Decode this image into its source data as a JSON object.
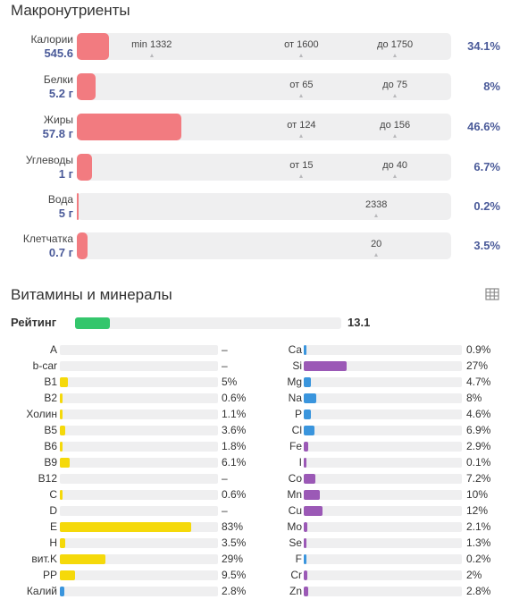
{
  "macros": {
    "title": "Макронутриенты",
    "rows": [
      {
        "name": "Калории",
        "value": "545.6",
        "percent": "34.1%",
        "fill_fraction": 0.085,
        "markers": [
          {
            "label": "min 1332",
            "pos": 0.2
          },
          {
            "label": "от 1600",
            "pos": 0.6
          },
          {
            "label": "до 1750",
            "pos": 0.85
          }
        ]
      },
      {
        "name": "Белки",
        "value": "5.2 г",
        "percent": "8%",
        "fill_fraction": 0.05,
        "markers": [
          {
            "label": "от 65",
            "pos": 0.6
          },
          {
            "label": "до 75",
            "pos": 0.85
          }
        ]
      },
      {
        "name": "Жиры",
        "value": "57.8 г",
        "percent": "46.6%",
        "fill_fraction": 0.28,
        "markers": [
          {
            "label": "от 124",
            "pos": 0.6
          },
          {
            "label": "до 156",
            "pos": 0.85
          }
        ]
      },
      {
        "name": "Углеводы",
        "value": "1 г",
        "percent": "6.7%",
        "fill_fraction": 0.04,
        "markers": [
          {
            "label": "от 15",
            "pos": 0.6
          },
          {
            "label": "до 40",
            "pos": 0.85
          }
        ]
      },
      {
        "name": "Вода",
        "value": "5 г",
        "percent": "0.2%",
        "fill_fraction": 0.004,
        "markers": [
          {
            "label": "2338",
            "pos": 0.8
          }
        ]
      },
      {
        "name": "Клетчатка",
        "value": "0.7 г",
        "percent": "3.5%",
        "fill_fraction": 0.028,
        "markers": [
          {
            "label": "20",
            "pos": 0.8
          }
        ]
      }
    ]
  },
  "vitamins": {
    "title": "Витамины и минералы",
    "rating_label": "Рейтинг",
    "rating_value": "13.1",
    "rating_fill": 0.131,
    "colors": {
      "vitamin": "#f5d90a",
      "blue": "#3a95dd",
      "purple": "#9b59b6",
      "rating": "#34c66c",
      "macro": "#f27b80"
    },
    "left": [
      {
        "name": "A",
        "value": "–",
        "fill": 0,
        "color": "vitamin"
      },
      {
        "name": "b-car",
        "value": "–",
        "fill": 0,
        "color": "vitamin"
      },
      {
        "name": "B1",
        "value": "5%",
        "fill": 0.05,
        "color": "vitamin"
      },
      {
        "name": "B2",
        "value": "0.6%",
        "fill": 0.006,
        "color": "vitamin"
      },
      {
        "name": "Холин",
        "value": "1.1%",
        "fill": 0.011,
        "color": "vitamin"
      },
      {
        "name": "B5",
        "value": "3.6%",
        "fill": 0.036,
        "color": "vitamin"
      },
      {
        "name": "B6",
        "value": "1.8%",
        "fill": 0.018,
        "color": "vitamin"
      },
      {
        "name": "B9",
        "value": "6.1%",
        "fill": 0.061,
        "color": "vitamin"
      },
      {
        "name": "B12",
        "value": "–",
        "fill": 0,
        "color": "vitamin"
      },
      {
        "name": "C",
        "value": "0.6%",
        "fill": 0.006,
        "color": "vitamin"
      },
      {
        "name": "D",
        "value": "–",
        "fill": 0,
        "color": "vitamin"
      },
      {
        "name": "E",
        "value": "83%",
        "fill": 0.83,
        "color": "vitamin"
      },
      {
        "name": "H",
        "value": "3.5%",
        "fill": 0.035,
        "color": "vitamin"
      },
      {
        "name": "вит.K",
        "value": "29%",
        "fill": 0.29,
        "color": "vitamin"
      },
      {
        "name": "PP",
        "value": "9.5%",
        "fill": 0.095,
        "color": "vitamin"
      },
      {
        "name": "Калий",
        "value": "2.8%",
        "fill": 0.028,
        "color": "blue"
      }
    ],
    "right": [
      {
        "name": "Ca",
        "value": "0.9%",
        "fill": 0.009,
        "color": "blue"
      },
      {
        "name": "Si",
        "value": "27%",
        "fill": 0.27,
        "color": "purple"
      },
      {
        "name": "Mg",
        "value": "4.7%",
        "fill": 0.047,
        "color": "blue"
      },
      {
        "name": "Na",
        "value": "8%",
        "fill": 0.08,
        "color": "blue"
      },
      {
        "name": "P",
        "value": "4.6%",
        "fill": 0.046,
        "color": "blue"
      },
      {
        "name": "Cl",
        "value": "6.9%",
        "fill": 0.069,
        "color": "blue"
      },
      {
        "name": "Fe",
        "value": "2.9%",
        "fill": 0.029,
        "color": "purple"
      },
      {
        "name": "I",
        "value": "0.1%",
        "fill": 0.001,
        "color": "purple"
      },
      {
        "name": "Co",
        "value": "7.2%",
        "fill": 0.072,
        "color": "purple"
      },
      {
        "name": "Mn",
        "value": "10%",
        "fill": 0.1,
        "color": "purple"
      },
      {
        "name": "Cu",
        "value": "12%",
        "fill": 0.12,
        "color": "purple"
      },
      {
        "name": "Mo",
        "value": "2.1%",
        "fill": 0.021,
        "color": "purple"
      },
      {
        "name": "Se",
        "value": "1.3%",
        "fill": 0.013,
        "color": "purple"
      },
      {
        "name": "F",
        "value": "0.2%",
        "fill": 0.002,
        "color": "blue"
      },
      {
        "name": "Cr",
        "value": "2%",
        "fill": 0.02,
        "color": "purple"
      },
      {
        "name": "Zn",
        "value": "2.8%",
        "fill": 0.028,
        "color": "purple"
      }
    ]
  },
  "icons": {
    "table": "table-grid-icon"
  }
}
